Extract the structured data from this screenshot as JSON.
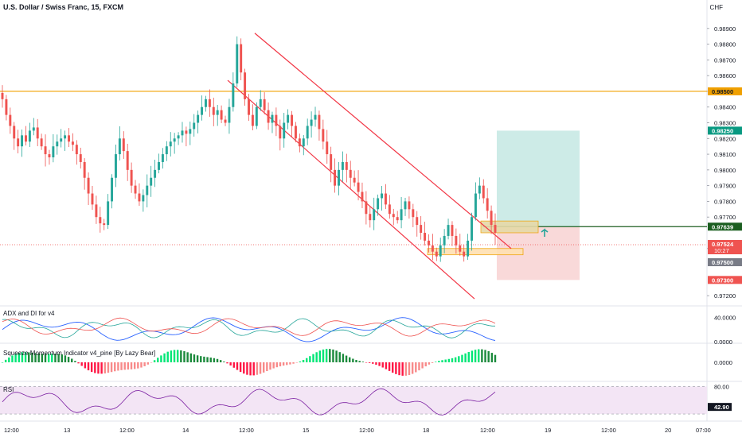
{
  "header": {
    "title": "U.S. Dollar / Swiss Franc, 15, FXCM",
    "currency": "CHF"
  },
  "colors": {
    "up": "#26a69a",
    "down": "#ef5350",
    "channel": "#f23645",
    "resistance": "#f0a000",
    "profit_zone": "#cdebe7",
    "loss_zone": "#f9d9d9",
    "entry_line": "#1b5e20",
    "adx": "#2962ff",
    "di_plus": "#26a69a",
    "di_minus": "#ef5350",
    "rsi": "#7b1fa2"
  },
  "chart_data": [
    {
      "type": "candlestick",
      "name": "price",
      "x_labels": [
        "12:00",
        "13",
        "12:00",
        "14",
        "12:00",
        "15",
        "12:00",
        "18",
        "12:00",
        "19",
        "12:00",
        "20",
        "07:00"
      ],
      "y_ticks": [
        0.972,
        0.975,
        0.977,
        0.978,
        0.979,
        0.98,
        0.981,
        0.982,
        0.983,
        0.984,
        0.985,
        0.986,
        0.987,
        0.988,
        0.989
      ],
      "ylim": [
        0.9715,
        0.9898
      ],
      "closes": [
        0.9845,
        0.9835,
        0.9828,
        0.982,
        0.9815,
        0.9822,
        0.9818,
        0.9825,
        0.9827,
        0.982,
        0.9815,
        0.981,
        0.9808,
        0.9815,
        0.9818,
        0.982,
        0.9822,
        0.9818,
        0.9816,
        0.981,
        0.9805,
        0.9795,
        0.9785,
        0.9778,
        0.977,
        0.9766,
        0.9765,
        0.978,
        0.9795,
        0.981,
        0.982,
        0.9812,
        0.98,
        0.979,
        0.9785,
        0.978,
        0.9784,
        0.979,
        0.9795,
        0.98,
        0.9805,
        0.981,
        0.9815,
        0.9818,
        0.982,
        0.9822,
        0.9825,
        0.9823,
        0.9826,
        0.983,
        0.9835,
        0.984,
        0.9845,
        0.984,
        0.9835,
        0.9838,
        0.9832,
        0.983,
        0.984,
        0.9855,
        0.988,
        0.9862,
        0.9845,
        0.9835,
        0.9828,
        0.984,
        0.9845,
        0.9838,
        0.983,
        0.9835,
        0.9828,
        0.982,
        0.983,
        0.9835,
        0.9828,
        0.982,
        0.9815,
        0.982,
        0.9828,
        0.9832,
        0.9835,
        0.9826,
        0.9818,
        0.981,
        0.98,
        0.979,
        0.98,
        0.9805,
        0.98,
        0.9795,
        0.9792,
        0.9786,
        0.978,
        0.9772,
        0.9768,
        0.9775,
        0.9782,
        0.9785,
        0.9778,
        0.9772,
        0.977,
        0.9768,
        0.9775,
        0.978,
        0.9775,
        0.977,
        0.9765,
        0.976,
        0.9755,
        0.9752,
        0.9748,
        0.9745,
        0.9752,
        0.9758,
        0.9765,
        0.9758,
        0.9752,
        0.9748,
        0.9745,
        0.9755,
        0.977,
        0.9785,
        0.979,
        0.9782,
        0.9774,
        0.9765,
        0.976
      ],
      "series": [
        {
          "name": "",
          "points": []
        }
      ],
      "annotations": {
        "resistance_level": 0.985,
        "target": 0.9825,
        "entry": 0.97639,
        "current": 0.97524,
        "stop": 0.973,
        "support_zone": [
          0.9746,
          0.975
        ],
        "price_labels": [
          "0.98500",
          "0.98250",
          "0.97639",
          "0.97524",
          "10:27",
          "0.97500",
          "0.97300"
        ]
      },
      "grid": false
    },
    {
      "type": "line",
      "name": "ADX and DI for v4",
      "y_ticks": [
        "40.0000",
        "0.0000"
      ],
      "ylim": [
        0,
        55
      ]
    },
    {
      "type": "bar",
      "name": "Squeeze Momentum Indicator v4_pine [By Lazy Bear]",
      "y_ticks": [
        "0.0000"
      ]
    },
    {
      "type": "line",
      "name": "RSI",
      "y_ticks": [
        "80.00",
        "42.90"
      ],
      "ylim": [
        20,
        85
      ],
      "current": 42.9
    }
  ],
  "indicators": {
    "adx_label": "ADX and DI for v4",
    "squeeze_label": "Squeeze Momentum Indicator v4_pine [By Lazy Bear]",
    "rsi_label": "RSI"
  }
}
